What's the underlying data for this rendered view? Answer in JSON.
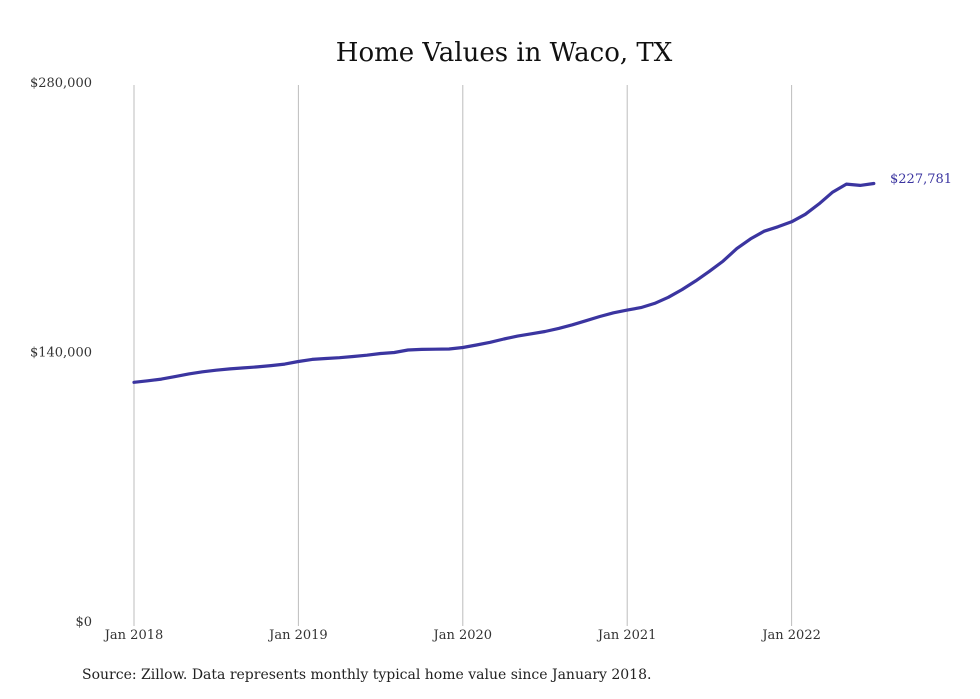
{
  "colors": {
    "series": "#3b35a0",
    "grid": "#bdbdbd",
    "text": "#333333"
  },
  "source_note": "Source: Zillow. Data represents monthly typical home value since January 2018.",
  "chart_data": {
    "type": "line",
    "title": "Home Values in Waco, TX",
    "xlabel": "",
    "ylabel": "",
    "ylim": [
      0,
      280000
    ],
    "yticks": [
      {
        "value": 0,
        "label": "$0"
      },
      {
        "value": 140000,
        "label": "$140,000"
      },
      {
        "value": 280000,
        "label": "$280,000"
      }
    ],
    "xticks": [
      {
        "value": "2018-01",
        "label": "Jan 2018"
      },
      {
        "value": "2019-01",
        "label": "Jan 2019"
      },
      {
        "value": "2020-01",
        "label": "Jan 2020"
      },
      {
        "value": "2021-01",
        "label": "Jan 2021"
      },
      {
        "value": "2022-01",
        "label": "Jan 2022"
      }
    ],
    "grid": "vertical",
    "end_label": "$227,781",
    "series": [
      {
        "x": [
          "2018-01",
          "2018-02",
          "2018-03",
          "2018-04",
          "2018-05",
          "2018-06",
          "2018-07",
          "2018-08",
          "2018-09",
          "2018-10",
          "2018-11",
          "2018-12",
          "2019-01",
          "2019-02",
          "2019-03",
          "2019-04",
          "2019-05",
          "2019-06",
          "2019-07",
          "2019-08",
          "2019-09",
          "2019-10",
          "2019-11",
          "2019-12",
          "2020-01",
          "2020-02",
          "2020-03",
          "2020-04",
          "2020-05",
          "2020-06",
          "2020-07",
          "2020-08",
          "2020-09",
          "2020-10",
          "2020-11",
          "2020-12",
          "2021-01",
          "2021-02",
          "2021-03",
          "2021-04",
          "2021-05",
          "2021-06",
          "2021-07",
          "2021-08",
          "2021-09",
          "2021-10",
          "2021-11",
          "2021-12",
          "2022-01",
          "2022-02",
          "2022-03",
          "2022-04",
          "2022-05",
          "2022-06",
          "2022-07"
        ],
        "values": [
          124500,
          125300,
          126200,
          127500,
          128900,
          130000,
          130800,
          131500,
          132000,
          132500,
          133200,
          134000,
          135300,
          136400,
          136900,
          137300,
          137900,
          138600,
          139500,
          140000,
          141300,
          141600,
          141700,
          141800,
          142600,
          143900,
          145300,
          147000,
          148500,
          149700,
          150900,
          152500,
          154400,
          156500,
          158700,
          160600,
          162000,
          163300,
          165500,
          168700,
          172700,
          177200,
          182200,
          187500,
          194000,
          199000,
          203000,
          205300,
          207900,
          211800,
          217200,
          223300,
          227500,
          226800,
          227781
        ]
      }
    ]
  }
}
